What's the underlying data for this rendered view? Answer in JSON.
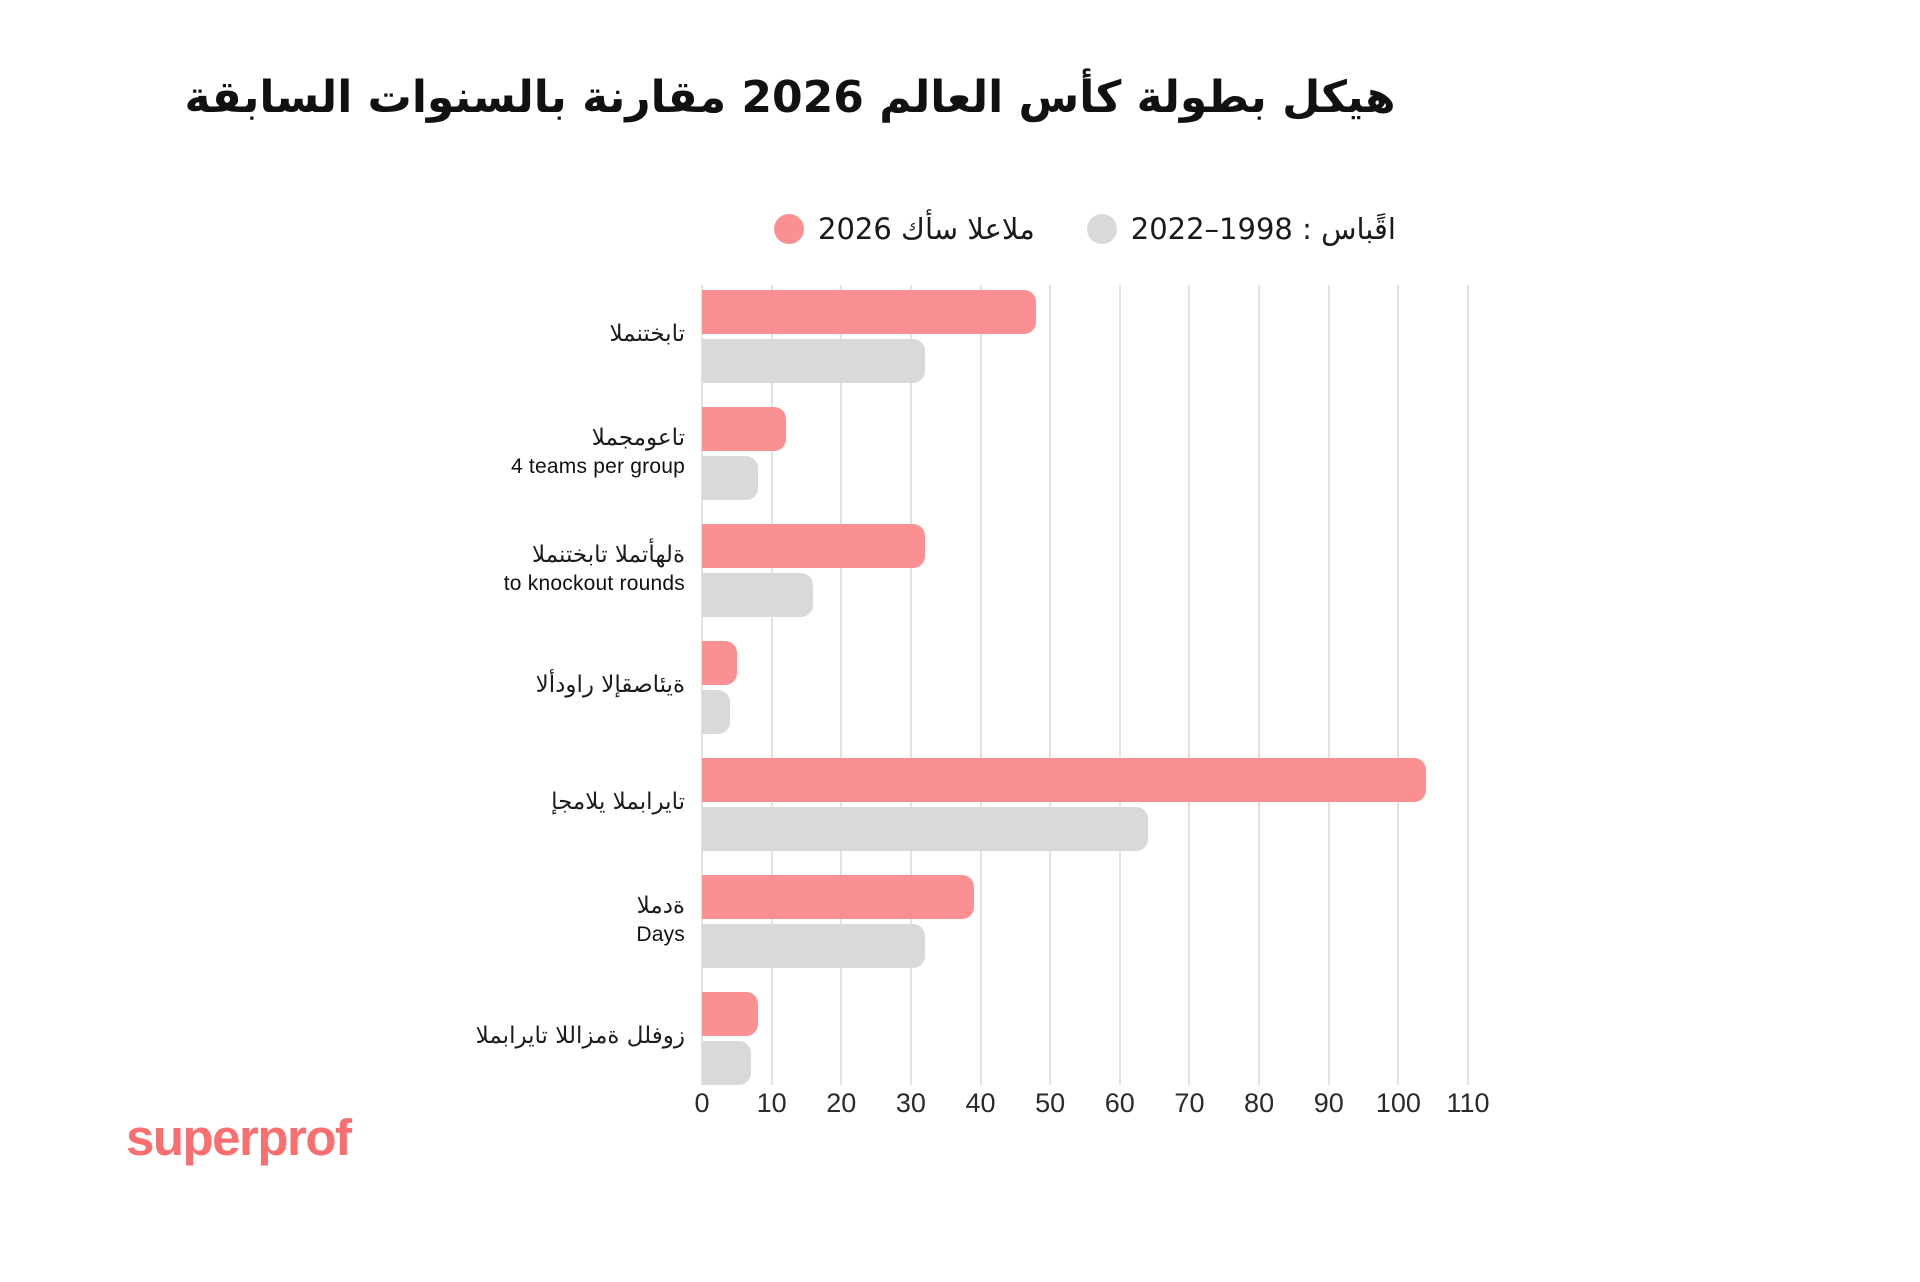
{
  "title": {
    "pre": "هيكل بطولة كأس العالم",
    "year": "2026",
    "post": "مقارنة بالسنوات السابقة"
  },
  "legend": {
    "items": [
      {
        "label": "2026 كأس العالم",
        "series": "world-cup-2026",
        "color": "#fa9092"
      },
      {
        "label": "2022–1998 : سابقًا",
        "series": "previously-1998-2022",
        "color": "#d9d9d9"
      }
    ]
  },
  "logo": {
    "text": "superprof",
    "color": "#f96f70"
  },
  "chart_data": {
    "type": "bar",
    "orientation": "horizontal",
    "title": "هيكل بطولة كأس العالم 2026 مقارنة بالسنوات السابقة",
    "categories": [
      {
        "label": "المنتخبات",
        "sublabel": ""
      },
      {
        "label": "المجموعات",
        "sublabel": "4 teams per group"
      },
      {
        "label": "المنتخبات المتأهلة",
        "sublabel": "to knockout rounds"
      },
      {
        "label": "الأدوار الإقصائية",
        "sublabel": ""
      },
      {
        "label": "إجمالي المباريات",
        "sublabel": ""
      },
      {
        "label": "المدة",
        "sublabel": "Days"
      },
      {
        "label": "المباريات اللازمة للفوز",
        "sublabel": ""
      }
    ],
    "series": [
      {
        "name": "كأس العالم 2026",
        "color": "#fa9092",
        "values": [
          48,
          12,
          32,
          5,
          104,
          39,
          8
        ]
      },
      {
        "name": "سابقًا: 1998–2022",
        "color": "#d9d9d9",
        "values": [
          32,
          8,
          16,
          4,
          64,
          32,
          7
        ]
      }
    ],
    "xlim": [
      0,
      110
    ],
    "xticks": [
      0,
      10,
      20,
      30,
      40,
      50,
      60,
      70,
      80,
      90,
      100,
      110
    ],
    "grid": "vertical",
    "legend_position": "top",
    "bar_corner_radius": 12
  }
}
